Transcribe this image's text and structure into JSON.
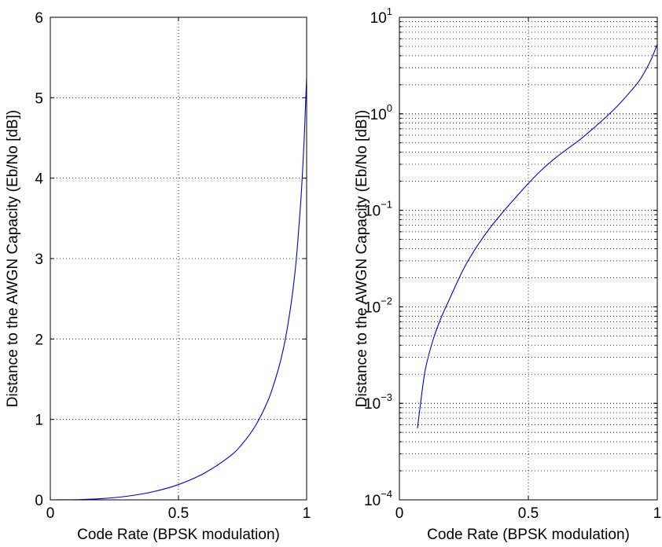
{
  "colors": {
    "series": "#0000cc",
    "axes": "#000000",
    "background": "#ffffff"
  },
  "chart_data": [
    {
      "type": "line",
      "title": "",
      "xlabel": "Code Rate (BPSK modulation)",
      "ylabel": "Distance to the AWGN Capacity (Eb/No [dB])",
      "xlim": [
        0,
        1
      ],
      "ylim": [
        0,
        6
      ],
      "yscale": "linear",
      "grid": true,
      "x_ticks": [
        {
          "value": 0,
          "label": "0"
        },
        {
          "value": 0.5,
          "label": "0.5"
        },
        {
          "value": 1,
          "label": "1"
        }
      ],
      "y_ticks": [
        {
          "value": 0,
          "label": "0"
        },
        {
          "value": 1,
          "label": "1"
        },
        {
          "value": 2,
          "label": "2"
        },
        {
          "value": 3,
          "label": "3"
        },
        {
          "value": 4,
          "label": "4"
        },
        {
          "value": 5,
          "label": "5"
        },
        {
          "value": 6,
          "label": "6"
        }
      ],
      "series": [
        {
          "x": [
            0.0,
            0.07,
            0.1,
            0.2,
            0.3,
            0.4,
            0.5,
            0.6,
            0.7,
            0.75,
            0.8,
            0.85,
            0.88,
            0.9,
            0.92,
            0.94,
            0.95,
            0.96,
            0.97,
            0.98,
            0.99,
            0.995,
            1.0
          ],
          "y": [
            0.0,
            0.0006,
            0.002,
            0.015,
            0.045,
            0.1,
            0.19,
            0.33,
            0.54,
            0.7,
            0.92,
            1.24,
            1.52,
            1.75,
            2.05,
            2.45,
            2.7,
            3.0,
            3.4,
            3.85,
            4.45,
            4.85,
            5.25
          ]
        }
      ]
    },
    {
      "type": "line",
      "title": "",
      "xlabel": "Code Rate (BPSK modulation)",
      "ylabel": "Distance to the AWGN Capacity (Eb/No [dB])",
      "xlim": [
        0,
        1
      ],
      "ylim": [
        0.0001,
        10
      ],
      "yscale": "log",
      "grid": true,
      "x_ticks": [
        {
          "value": 0,
          "label": "0"
        },
        {
          "value": 0.5,
          "label": "0.5"
        },
        {
          "value": 1,
          "label": "1"
        }
      ],
      "y_ticks": [
        {
          "value": 0.0001,
          "base": "10",
          "exp": "−4"
        },
        {
          "value": 0.001,
          "base": "10",
          "exp": "−3"
        },
        {
          "value": 0.01,
          "base": "10",
          "exp": "−2"
        },
        {
          "value": 0.1,
          "base": "10",
          "exp": "−1"
        },
        {
          "value": 1,
          "base": "10",
          "exp": "0"
        },
        {
          "value": 10,
          "base": "10",
          "exp": "1"
        }
      ],
      "series": [
        {
          "x": [
            0.07,
            0.08,
            0.1,
            0.13,
            0.16,
            0.2,
            0.25,
            0.3,
            0.35,
            0.4,
            0.45,
            0.5,
            0.55,
            0.6,
            0.65,
            0.7,
            0.75,
            0.8,
            0.85,
            0.9,
            0.93,
            0.96,
            0.98,
            1.0
          ],
          "y": [
            0.00055,
            0.0009,
            0.0022,
            0.0045,
            0.0075,
            0.013,
            0.025,
            0.042,
            0.065,
            0.095,
            0.135,
            0.19,
            0.26,
            0.34,
            0.43,
            0.54,
            0.7,
            0.92,
            1.24,
            1.75,
            2.2,
            3.0,
            3.85,
            5.25
          ]
        }
      ]
    }
  ]
}
